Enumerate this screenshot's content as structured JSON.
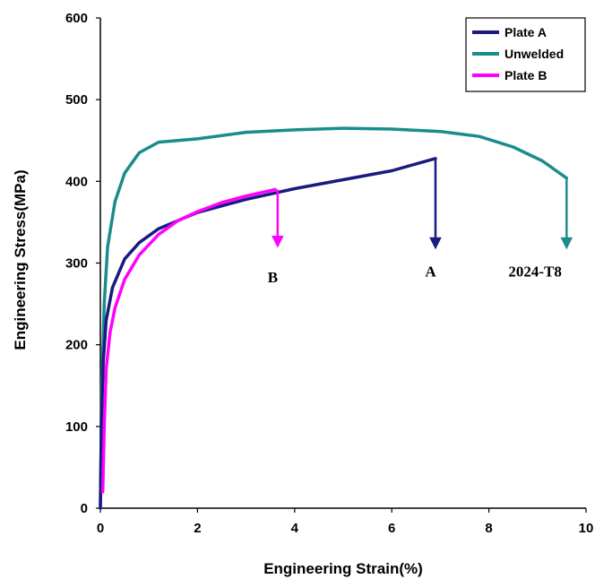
{
  "chart_data": {
    "type": "line",
    "xlabel": "Engineering Strain(%)",
    "ylabel": "Engineering Stress(MPa)",
    "xlim": [
      0,
      10
    ],
    "ylim": [
      0,
      600
    ],
    "xticks": [
      0,
      2,
      4,
      6,
      8,
      10
    ],
    "yticks": [
      0,
      100,
      200,
      300,
      400,
      500,
      600
    ],
    "x_tick_labels": [
      "0",
      "2",
      "4",
      "6",
      "8",
      "10"
    ],
    "y_tick_labels": [
      "0",
      "100",
      "200",
      "300",
      "400",
      "500",
      "600"
    ],
    "grid": false,
    "legend_position": "top-right",
    "series": [
      {
        "name": "Plate A",
        "color": "#1a1a80",
        "points": [
          [
            0.0,
            0
          ],
          [
            0.02,
            100
          ],
          [
            0.06,
            180
          ],
          [
            0.12,
            230
          ],
          [
            0.25,
            270
          ],
          [
            0.5,
            305
          ],
          [
            0.8,
            325
          ],
          [
            1.2,
            342
          ],
          [
            2.0,
            362
          ],
          [
            3.0,
            378
          ],
          [
            4.0,
            391
          ],
          [
            5.0,
            402
          ],
          [
            6.0,
            413
          ],
          [
            6.9,
            428
          ]
        ],
        "fracture": [
          6.9,
          428
        ],
        "drop_to": 320
      },
      {
        "name": "Unwelded",
        "color": "#1a8c8c",
        "points": [
          [
            0.0,
            0
          ],
          [
            0.03,
            150
          ],
          [
            0.08,
            250
          ],
          [
            0.15,
            320
          ],
          [
            0.3,
            375
          ],
          [
            0.5,
            410
          ],
          [
            0.8,
            435
          ],
          [
            1.2,
            448
          ],
          [
            2.0,
            452
          ],
          [
            3.0,
            460
          ],
          [
            4.0,
            463
          ],
          [
            5.0,
            465
          ],
          [
            6.0,
            464
          ],
          [
            7.0,
            461
          ],
          [
            7.8,
            455
          ],
          [
            8.5,
            442
          ],
          [
            9.1,
            425
          ],
          [
            9.6,
            404
          ]
        ],
        "fracture": [
          9.6,
          404
        ],
        "drop_to": 320
      },
      {
        "name": "Plate B",
        "color": "#ff00ff",
        "points": [
          [
            0.05,
            20
          ],
          [
            0.08,
            100
          ],
          [
            0.12,
            170
          ],
          [
            0.2,
            215
          ],
          [
            0.3,
            245
          ],
          [
            0.5,
            280
          ],
          [
            0.8,
            310
          ],
          [
            1.2,
            335
          ],
          [
            1.6,
            352
          ],
          [
            2.0,
            363
          ],
          [
            2.5,
            374
          ],
          [
            3.0,
            382
          ],
          [
            3.6,
            390
          ]
        ],
        "fracture": [
          3.65,
          390
        ],
        "drop_to": 322
      }
    ],
    "annotations": [
      {
        "text": "B",
        "x": 3.55,
        "y": 283
      },
      {
        "text": "A",
        "x": 6.8,
        "y": 290
      },
      {
        "text": "2024-T8",
        "x": 8.95,
        "y": 290
      }
    ]
  }
}
